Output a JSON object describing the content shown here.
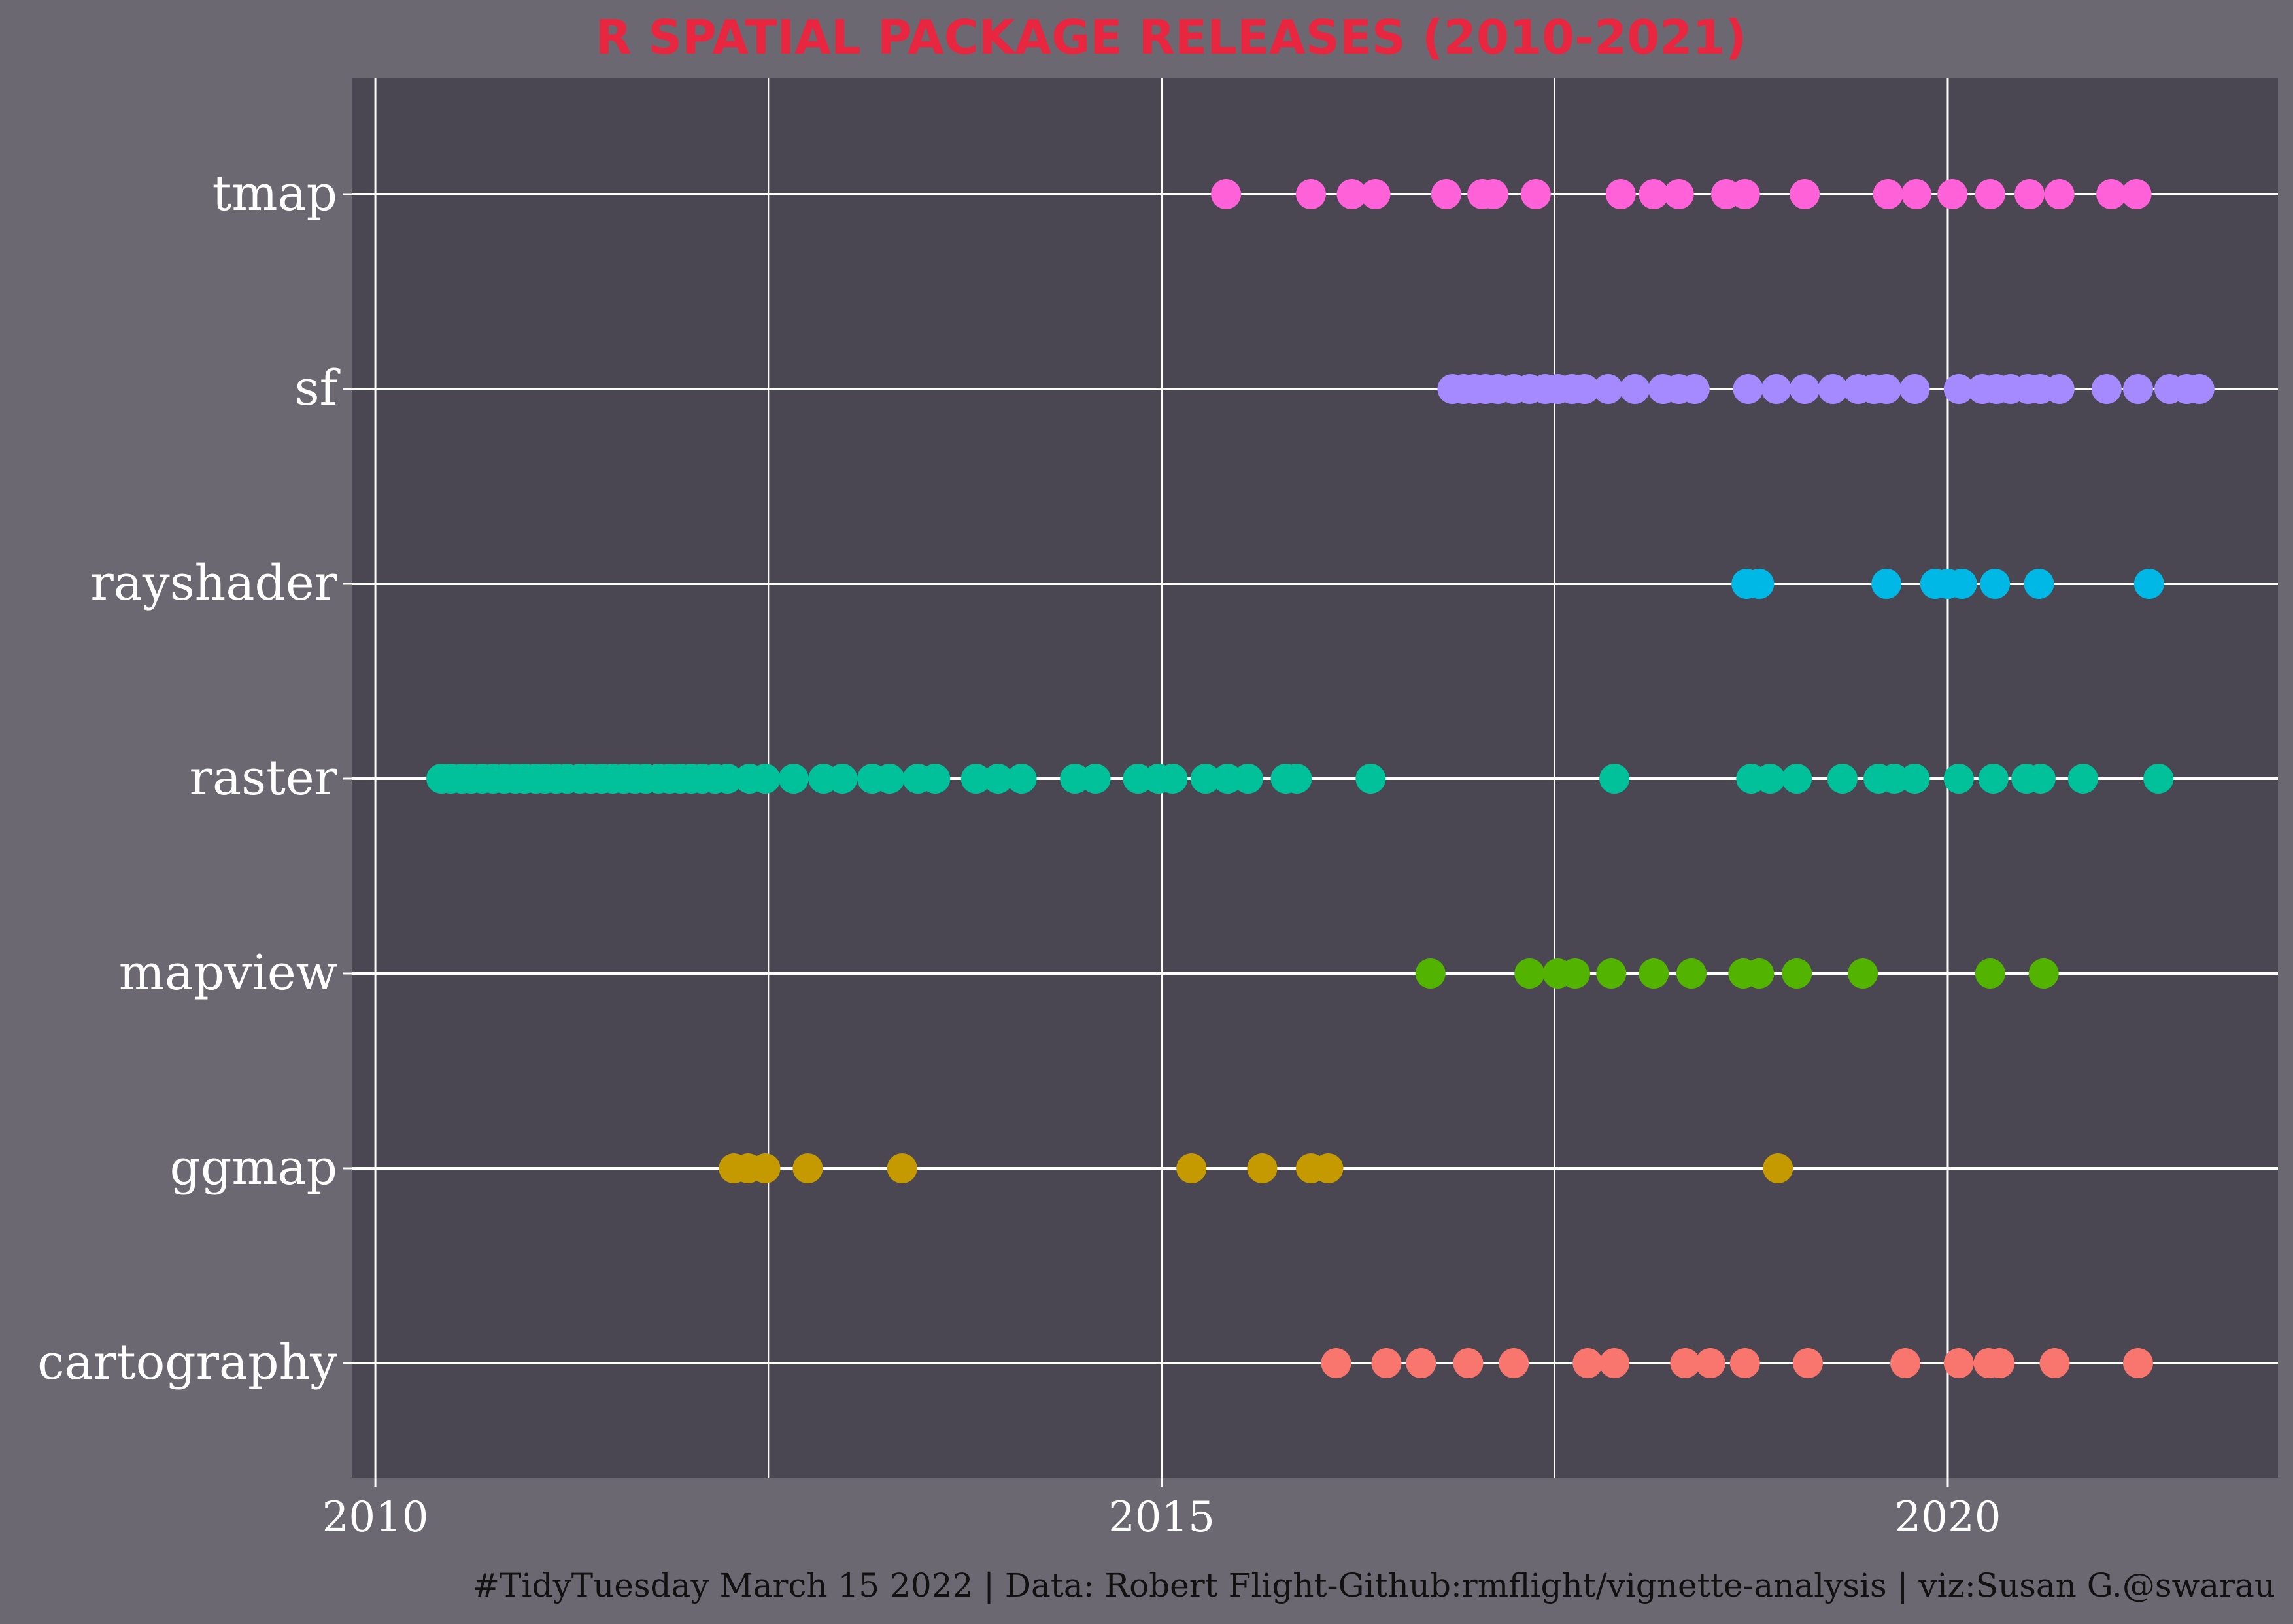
{
  "colors": {
    "background": "#6c6872",
    "panel": "#4a4652",
    "grid": "#ffffff",
    "title": "#e8263f",
    "axis_text": "#ffffff",
    "caption_text": "#111111"
  },
  "caption": "#TidyTuesday March 15 2022 | Data: Robert Flight-Github:rmflight/vignette-analysis | viz:Susan G.@swarau",
  "chart_data": {
    "type": "scatter",
    "title": "R SPATIAL PACKAGE RELEASES (2010-2021)",
    "xlabel": "",
    "ylabel": "",
    "x_ticks": [
      2010,
      2015,
      2020
    ],
    "xlim": [
      2009.85,
      2022.1
    ],
    "grid": true,
    "legend": "none",
    "categories": [
      "tmap",
      "sf",
      "rayshader",
      "raster",
      "mapview",
      "ggmap",
      "cartography"
    ],
    "series": [
      {
        "name": "tmap",
        "color": "#ff61d8",
        "x": [
          2015.41,
          2015.95,
          2016.21,
          2016.36,
          2016.81,
          2017.04,
          2017.11,
          2017.38,
          2017.92,
          2018.13,
          2018.29,
          2018.59,
          2018.71,
          2019.09,
          2019.62,
          2019.8,
          2020.03,
          2020.27,
          2020.52,
          2020.71,
          2021.04,
          2021.2
        ]
      },
      {
        "name": "sf",
        "color": "#a58aff",
        "x": [
          2016.85,
          2016.92,
          2016.99,
          2017.06,
          2017.14,
          2017.24,
          2017.34,
          2017.44,
          2017.52,
          2017.61,
          2017.69,
          2017.84,
          2018.01,
          2018.19,
          2018.29,
          2018.39,
          2018.73,
          2018.91,
          2019.09,
          2019.27,
          2019.43,
          2019.53,
          2019.61,
          2019.79,
          2020.07,
          2020.22,
          2020.31,
          2020.4,
          2020.51,
          2020.59,
          2020.71,
          2021.01,
          2021.21,
          2021.41,
          2021.52,
          2021.6
        ]
      },
      {
        "name": "rayshader",
        "color": "#00b8e5",
        "x": [
          2018.72,
          2018.8,
          2019.61,
          2019.92,
          2020.0,
          2020.09,
          2020.3,
          2020.58,
          2021.28
        ]
      },
      {
        "name": "raster",
        "color": "#00c19a",
        "x": [
          2010.42,
          2010.48,
          2010.55,
          2010.61,
          2010.68,
          2010.75,
          2010.82,
          2010.89,
          2010.95,
          2011.02,
          2011.08,
          2011.15,
          2011.22,
          2011.3,
          2011.37,
          2011.44,
          2011.51,
          2011.58,
          2011.65,
          2011.72,
          2011.8,
          2011.87,
          2011.94,
          2012.01,
          2012.08,
          2012.16,
          2012.24,
          2012.38,
          2012.48,
          2012.66,
          2012.85,
          2012.97,
          2013.16,
          2013.27,
          2013.45,
          2013.56,
          2013.82,
          2013.96,
          2014.11,
          2014.45,
          2014.58,
          2014.85,
          2014.98,
          2015.07,
          2015.28,
          2015.42,
          2015.55,
          2015.79,
          2015.86,
          2016.33,
          2017.88,
          2018.75,
          2018.87,
          2019.04,
          2019.33,
          2019.56,
          2019.66,
          2019.79,
          2020.07,
          2020.29,
          2020.5,
          2020.59,
          2020.86,
          2021.34
        ]
      },
      {
        "name": "mapview",
        "color": "#53b400",
        "x": [
          2016.71,
          2017.34,
          2017.52,
          2017.63,
          2017.86,
          2018.13,
          2018.37,
          2018.7,
          2018.8,
          2019.04,
          2019.46,
          2020.27,
          2020.61
        ]
      },
      {
        "name": "ggmap",
        "color": "#c49a00",
        "x": [
          2012.28,
          2012.37,
          2012.48,
          2012.75,
          2013.35,
          2015.19,
          2015.64,
          2015.95,
          2016.06,
          2018.92
        ]
      },
      {
        "name": "cartography",
        "color": "#f8766d",
        "x": [
          2016.11,
          2016.43,
          2016.65,
          2016.95,
          2017.24,
          2017.71,
          2017.88,
          2018.33,
          2018.49,
          2018.71,
          2019.11,
          2019.73,
          2020.07,
          2020.26,
          2020.33,
          2020.68,
          2021.21
        ]
      }
    ]
  }
}
